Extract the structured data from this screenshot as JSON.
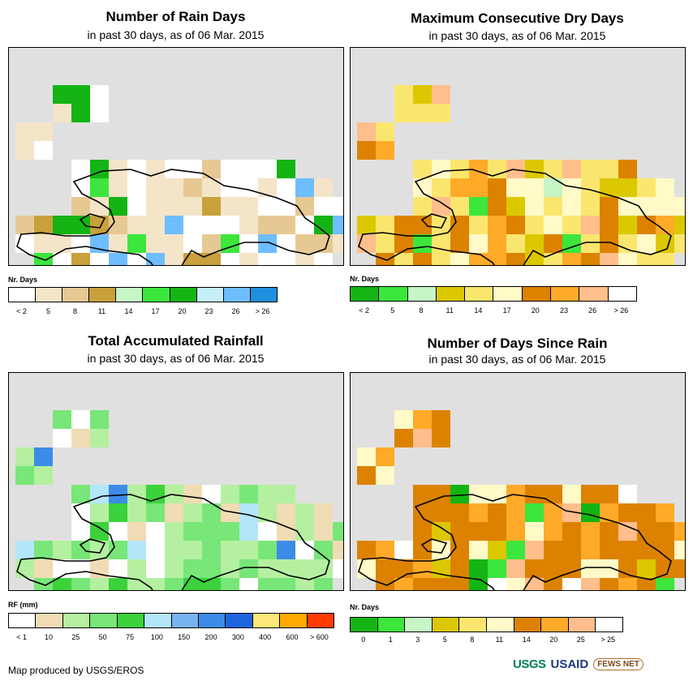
{
  "panels": [
    {
      "title": "Number of Rain Days",
      "subtitle": "in past 30 days, as of 06 Mar. 2015",
      "legend_title": "Nr. Days",
      "legend_labels": [
        "< 2",
        "5",
        "8",
        "11",
        "14",
        "17",
        "20",
        "23",
        "26",
        "> 26"
      ],
      "legend_colors": [
        "#ffffff",
        "#f4e4c8",
        "#e6c893",
        "#c8a03c",
        "#c6f5c6",
        "#3ce63c",
        "#14b414",
        "#c4eefa",
        "#6ebeff",
        "#1e90dc"
      ],
      "dominant_colors": [
        "#ffffff",
        "#f4e4c8",
        "#e6c893",
        "#c8a03c",
        "#3ce63c",
        "#14b414",
        "#6ebeff"
      ],
      "weights": [
        5,
        5,
        2,
        1,
        1,
        1,
        1
      ]
    },
    {
      "title": "Maximum Consecutive Dry Days",
      "subtitle": "in past 30 days, as of 06 Mar. 2015",
      "legend_title": "Nr. Days",
      "legend_labels": [
        "< 2",
        "5",
        "8",
        "11",
        "14",
        "17",
        "20",
        "23",
        "26",
        "> 26"
      ],
      "legend_colors": [
        "#14b414",
        "#3ce63c",
        "#c6f5c6",
        "#dcc800",
        "#fae66e",
        "#fffac8",
        "#dc8200",
        "#ffaa28",
        "#ffbe8c",
        "#ffffff"
      ],
      "dominant_colors": [
        "#fae66e",
        "#fffac8",
        "#dc8200",
        "#ffaa28",
        "#ffbe8c",
        "#dcc800",
        "#14b414",
        "#3ce63c",
        "#c6f5c6"
      ],
      "weights": [
        8,
        3,
        3,
        2,
        2,
        2,
        1,
        1,
        1
      ]
    },
    {
      "title": "Total Accumulated Rainfall",
      "subtitle": "in past 30 days, as of 06 Mar. 2015",
      "legend_title": "RF (mm)",
      "legend_labels": [
        "< 1",
        "10",
        "25",
        "50",
        "75",
        "100",
        "150",
        "200",
        "300",
        "400",
        "600",
        "> 600"
      ],
      "legend_colors": [
        "#ffffff",
        "#f0dcb4",
        "#b4f0a0",
        "#78e678",
        "#3cd23c",
        "#b4e6fa",
        "#78b4f0",
        "#3c8ce6",
        "#1e64dc",
        "#ffe678",
        "#ffaa00",
        "#ff3c00"
      ],
      "dominant_colors": [
        "#b4f0a0",
        "#78e678",
        "#f0dcb4",
        "#ffffff",
        "#3cd23c",
        "#b4e6fa",
        "#3c8ce6"
      ],
      "weights": [
        5,
        5,
        3,
        2,
        1,
        1,
        1
      ]
    },
    {
      "title": "Number of Days Since Rain",
      "subtitle": "in past 30 days, as of 06 Mar. 2015",
      "legend_title": "Nr. Days",
      "legend_labels": [
        "0",
        "1",
        "3",
        "5",
        "8",
        "11",
        "14",
        "20",
        "25",
        "> 25"
      ],
      "legend_colors": [
        "#14b414",
        "#3ce63c",
        "#c6f5c6",
        "#dcc800",
        "#fae66e",
        "#fffac8",
        "#dc8200",
        "#ffaa28",
        "#ffbe8c",
        "#ffffff"
      ],
      "dominant_colors": [
        "#dc8200",
        "#fffac8",
        "#ffaa28",
        "#14b414",
        "#3ce63c",
        "#ffffff",
        "#ffbe8c",
        "#dcc800"
      ],
      "weights": [
        9,
        3,
        2,
        2,
        1,
        1,
        1,
        1
      ]
    }
  ],
  "footer": {
    "credit": "Map produced by USGS/EROS",
    "logos": [
      "USGS",
      "USAID",
      "FEWS NET"
    ]
  },
  "colors": {
    "ocean": "#e0e0e0",
    "coast": "#000000"
  }
}
